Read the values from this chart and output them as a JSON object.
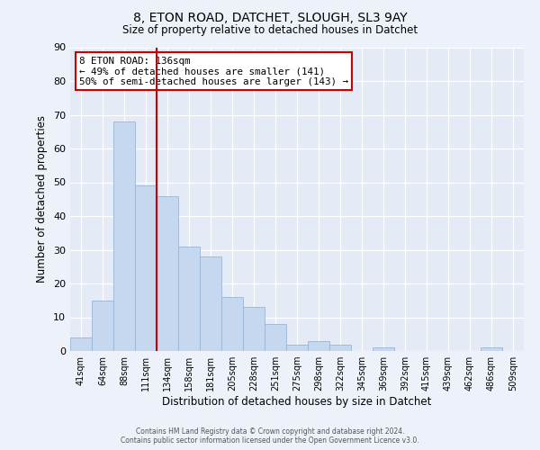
{
  "title1": "8, ETON ROAD, DATCHET, SLOUGH, SL3 9AY",
  "title2": "Size of property relative to detached houses in Datchet",
  "xlabel": "Distribution of detached houses by size in Datchet",
  "ylabel": "Number of detached properties",
  "bar_labels": [
    "41sqm",
    "64sqm",
    "88sqm",
    "111sqm",
    "134sqm",
    "158sqm",
    "181sqm",
    "205sqm",
    "228sqm",
    "251sqm",
    "275sqm",
    "298sqm",
    "322sqm",
    "345sqm",
    "369sqm",
    "392sqm",
    "415sqm",
    "439sqm",
    "462sqm",
    "486sqm",
    "509sqm"
  ],
  "bar_heights": [
    4,
    15,
    68,
    49,
    46,
    31,
    28,
    16,
    13,
    8,
    2,
    3,
    2,
    0,
    1,
    0,
    0,
    0,
    0,
    1,
    0
  ],
  "bar_color": "#c5d8f0",
  "bar_edge_color": "#9ab5d5",
  "vline_between": [
    3,
    4
  ],
  "vline_color": "#cc0000",
  "ylim": [
    0,
    90
  ],
  "yticks": [
    0,
    10,
    20,
    30,
    40,
    50,
    60,
    70,
    80,
    90
  ],
  "annotation_title": "8 ETON ROAD: 136sqm",
  "annotation_line1": "← 49% of detached houses are smaller (141)",
  "annotation_line2": "50% of semi-detached houses are larger (143) →",
  "annotation_box_color": "#ffffff",
  "annotation_box_edge": "#cc0000",
  "footer1": "Contains HM Land Registry data © Crown copyright and database right 2024.",
  "footer2": "Contains public sector information licensed under the Open Government Licence v3.0.",
  "background_color": "#edf1f9",
  "plot_bg_color": "#e4eaf6"
}
